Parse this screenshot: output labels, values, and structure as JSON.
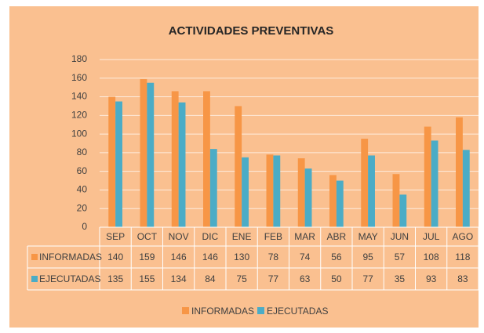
{
  "chart_data": {
    "type": "bar",
    "title": "ACTIVIDADES PREVENTIVAS",
    "categories": [
      "SEP",
      "OCT",
      "NOV",
      "DIC",
      "ENE",
      "FEB",
      "MAR",
      "ABR",
      "MAY",
      "JUN",
      "JUL",
      "AGO"
    ],
    "series": [
      {
        "name": "INFORMADAS",
        "color": "#f79646",
        "values": [
          140,
          159,
          146,
          146,
          130,
          78,
          74,
          56,
          95,
          57,
          108,
          118
        ]
      },
      {
        "name": "EJECUTADAS",
        "color": "#4bacc6",
        "values": [
          135,
          155,
          134,
          84,
          75,
          77,
          63,
          50,
          77,
          35,
          93,
          83
        ]
      }
    ],
    "ylim": [
      0,
      180
    ],
    "yticks": [
      0,
      20,
      40,
      60,
      80,
      100,
      120,
      140,
      160,
      180
    ],
    "grid": true
  }
}
